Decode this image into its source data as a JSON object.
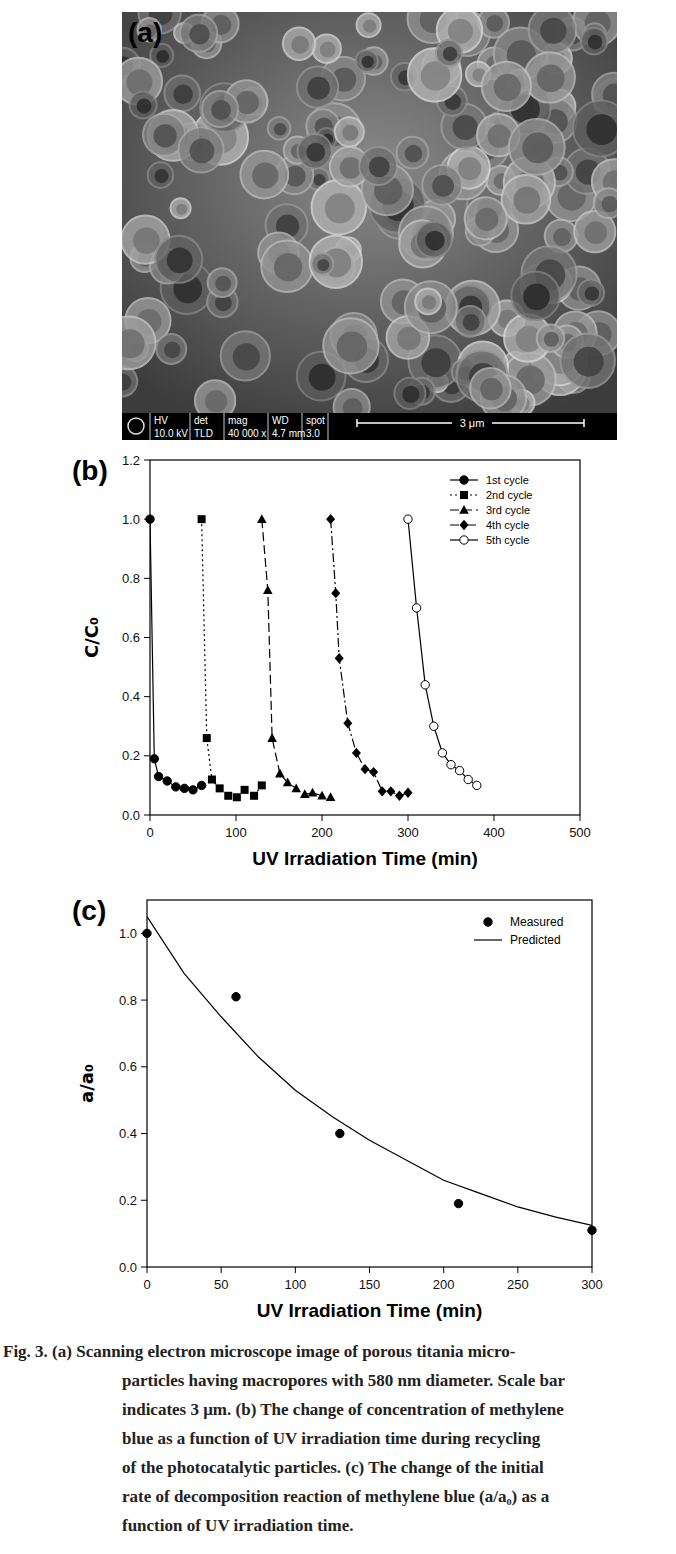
{
  "panel_a": {
    "label": "(a)",
    "info_bar": {
      "headers": [
        "HV",
        "det",
        "mag",
        "WD",
        "spot"
      ],
      "values": [
        "10.0 kV",
        "TLD",
        "40 000 x",
        "4.7 mm",
        "3.0"
      ]
    },
    "scale_bar": "3 μm"
  },
  "chart_data": [
    {
      "type": "line",
      "title": "(b)",
      "x_label": "UV Irradiation Time (min)",
      "y_label": "C/C₀",
      "xlim": [
        0,
        500
      ],
      "ylim": [
        0,
        1.2
      ],
      "xticks": [
        0,
        100,
        200,
        300,
        400,
        500
      ],
      "yticks": [
        {
          "value": 0,
          "label": "0.0"
        },
        {
          "value": 0.2,
          "label": "0.2"
        },
        {
          "value": 0.4,
          "label": "0.4"
        },
        {
          "value": 0.6,
          "label": "0.6"
        },
        {
          "value": 0.8,
          "label": "0.8"
        },
        {
          "value": 1,
          "label": "1.0"
        },
        {
          "value": 1.2,
          "label": "1.2"
        }
      ],
      "legend": "top-right",
      "grid": false,
      "series": [
        {
          "name": "1st cycle",
          "color": "#000000",
          "marker": "circle",
          "line_style": "solid",
          "x": [
            0,
            5,
            10,
            20,
            30,
            40,
            50,
            60
          ],
          "values": [
            1.0,
            0.19,
            0.13,
            0.115,
            0.095,
            0.09,
            0.085,
            0.1
          ]
        },
        {
          "name": "2nd cycle",
          "color": "#000000",
          "marker": "square",
          "line_style": "dotted",
          "x": [
            60,
            66,
            72,
            81,
            91,
            101,
            110,
            121,
            130
          ],
          "values": [
            1.0,
            0.26,
            0.12,
            0.09,
            0.065,
            0.06,
            0.085,
            0.065,
            0.1
          ]
        },
        {
          "name": "3rd cycle",
          "color": "#000000",
          "marker": "triangle",
          "line_style": "dashed",
          "x": [
            130,
            137,
            142,
            151,
            160,
            170,
            180,
            189,
            200,
            210
          ],
          "values": [
            1.0,
            0.76,
            0.26,
            0.14,
            0.11,
            0.09,
            0.07,
            0.075,
            0.065,
            0.06
          ]
        },
        {
          "name": "4th cycle",
          "color": "#000000",
          "marker": "diamond",
          "line_style": "dashdot",
          "x": [
            210,
            216,
            220,
            230,
            240,
            250,
            260,
            270,
            280,
            290,
            300
          ],
          "values": [
            1.0,
            0.75,
            0.53,
            0.31,
            0.21,
            0.155,
            0.145,
            0.08,
            0.08,
            0.065,
            0.075
          ]
        },
        {
          "name": "5th cycle",
          "color": "#000000",
          "marker": "circle-open",
          "line_style": "solid",
          "x": [
            300,
            310,
            320,
            330,
            340,
            350,
            360,
            370,
            380
          ],
          "values": [
            1.0,
            0.7,
            0.44,
            0.3,
            0.21,
            0.17,
            0.15,
            0.12,
            0.1
          ]
        }
      ]
    },
    {
      "type": "scatter",
      "title": "(c)",
      "x_label": "UV Irradiation Time (min)",
      "y_label": "a/a₀",
      "xlim": [
        0,
        300
      ],
      "ylim": [
        0,
        1.1
      ],
      "xticks": [
        0,
        50,
        100,
        150,
        200,
        250,
        300
      ],
      "yticks": [
        {
          "value": 0,
          "label": "0.0"
        },
        {
          "value": 0.2,
          "label": "0.2"
        },
        {
          "value": 0.4,
          "label": "0.4"
        },
        {
          "value": 0.6,
          "label": "0.6"
        },
        {
          "value": 0.8,
          "label": "0.8"
        },
        {
          "value": 1,
          "label": "1.0"
        }
      ],
      "legend": "top-right",
      "grid": false,
      "series": [
        {
          "name": "Measured",
          "color": "#000000",
          "marker": "circle",
          "line_style": "none",
          "x": [
            0,
            60,
            130,
            210,
            300
          ],
          "values": [
            1.0,
            0.81,
            0.4,
            0.19,
            0.11
          ]
        },
        {
          "name": "Predicted",
          "color": "#000000",
          "marker": "none",
          "line_style": "solid",
          "x": [
            0,
            25,
            50,
            75,
            100,
            125,
            150,
            175,
            200,
            225,
            250,
            275,
            300
          ],
          "values": [
            1.05,
            0.88,
            0.75,
            0.63,
            0.53,
            0.45,
            0.38,
            0.32,
            0.26,
            0.22,
            0.18,
            0.15,
            0.125
          ]
        }
      ]
    }
  ],
  "caption": [
    "Fig. 3. (a) Scanning electron microscope image of porous titania micro-",
    "particles having macropores with 580 nm diameter. Scale bar",
    "indicates 3 μm. (b) The change of concentration of methylene",
    "blue as a function of UV irradiation time during recycling",
    "of the photocatalytic particles. (c) The change of the initial",
    "rate of decomposition reaction of methylene blue (a/a₀) as a",
    "function of UV irradiation time."
  ]
}
